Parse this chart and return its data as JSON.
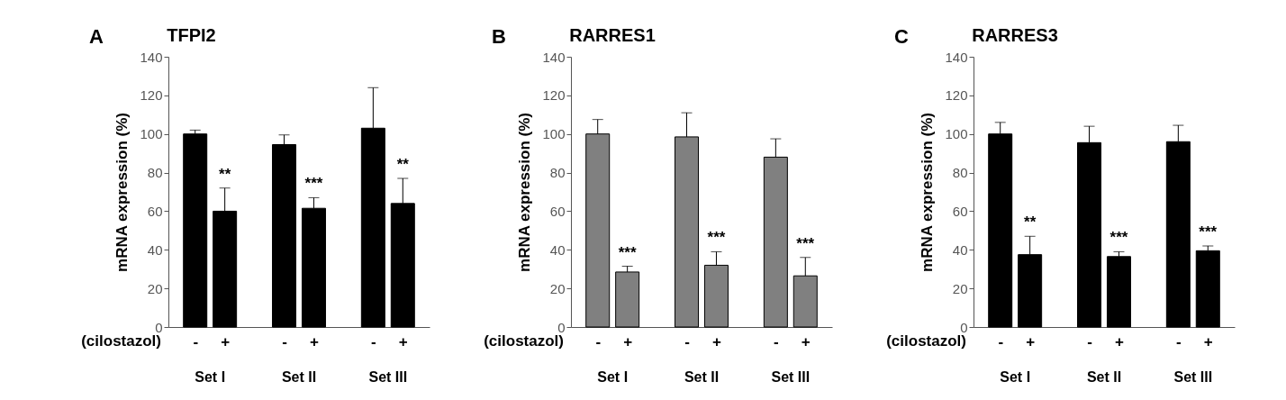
{
  "chart_data": [
    {
      "type": "bar",
      "title": "TFPI2",
      "ylabel": "mRNA expression (%)",
      "categories": [
        "-",
        "+",
        "-",
        "+",
        "-",
        "+"
      ],
      "values": [
        100,
        60,
        94.5,
        61.5,
        103,
        64
      ],
      "color": "#000000",
      "errors": [
        [
          100,
          102
        ],
        [
          60,
          72
        ],
        [
          94.5,
          99.5
        ],
        [
          61.5,
          67
        ],
        [
          103,
          124
        ],
        [
          64,
          77
        ]
      ],
      "value_labels": [
        null,
        "**",
        null,
        "***",
        null,
        "**"
      ],
      "ylim": [
        0,
        140
      ],
      "yticks": [
        0,
        20,
        40,
        60,
        80,
        100,
        120,
        140
      ],
      "grid": false,
      "annotations": [
        "A",
        "(cilostazol)",
        "Set I",
        "Set II",
        "Set III"
      ]
    },
    {
      "type": "bar",
      "title": "RARRES1",
      "ylabel": "mRNA expression (%)",
      "categories": [
        "-",
        "+",
        "-",
        "+",
        "-",
        "+"
      ],
      "values": [
        100,
        28.5,
        98.5,
        32,
        88,
        26.5
      ],
      "color": "#808080",
      "errors": [
        [
          100,
          107.5
        ],
        [
          28.5,
          31.5
        ],
        [
          98.5,
          111
        ],
        [
          32,
          39
        ],
        [
          88,
          97.5
        ],
        [
          26.5,
          36
        ]
      ],
      "value_labels": [
        null,
        "***",
        null,
        "***",
        null,
        "***"
      ],
      "ylim": [
        0,
        140
      ],
      "yticks": [
        0,
        20,
        40,
        60,
        80,
        100,
        120,
        140
      ],
      "grid": false,
      "annotations": [
        "B",
        "(cilostazol)",
        "Set I",
        "Set II",
        "Set III"
      ]
    },
    {
      "type": "bar",
      "title": "RARRES3",
      "ylabel": "mRNA expression (%)",
      "categories": [
        "-",
        "+",
        "-",
        "+",
        "-",
        "+"
      ],
      "values": [
        100,
        37.5,
        95.5,
        36.5,
        96,
        39.5
      ],
      "color": "#000000",
      "errors": [
        [
          100,
          106
        ],
        [
          37.5,
          47
        ],
        [
          95.5,
          104
        ],
        [
          36.5,
          39
        ],
        [
          96,
          104.5
        ],
        [
          39.5,
          42
        ]
      ],
      "value_labels": [
        null,
        "**",
        null,
        "***",
        null,
        "***"
      ],
      "ylim": [
        0,
        140
      ],
      "yticks": [
        0,
        20,
        40,
        60,
        80,
        100,
        120,
        140
      ],
      "grid": false,
      "annotations": [
        "C",
        "(cilostazol)",
        "Set I",
        "Set II",
        "Set III"
      ]
    }
  ]
}
